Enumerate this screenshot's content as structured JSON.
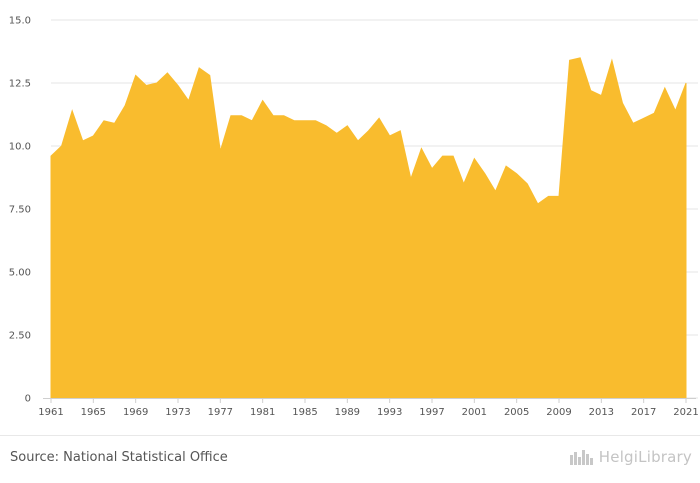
{
  "chart_data": {
    "type": "area",
    "title": "",
    "xlabel": "",
    "ylabel": "",
    "x": [
      1961,
      1962,
      1963,
      1964,
      1965,
      1966,
      1967,
      1968,
      1969,
      1970,
      1971,
      1972,
      1973,
      1974,
      1975,
      1976,
      1977,
      1978,
      1979,
      1980,
      1981,
      1982,
      1983,
      1984,
      1985,
      1986,
      1987,
      1988,
      1989,
      1990,
      1991,
      1992,
      1993,
      1994,
      1995,
      1996,
      1997,
      1998,
      1999,
      2000,
      2001,
      2002,
      2003,
      2004,
      2005,
      2006,
      2007,
      2008,
      2009,
      2010,
      2011,
      2012,
      2013,
      2014,
      2015,
      2016,
      2017,
      2018,
      2019,
      2020,
      2021
    ],
    "values": [
      9.6,
      10.0,
      11.4,
      10.2,
      10.4,
      11.0,
      10.9,
      11.6,
      12.8,
      12.4,
      12.5,
      12.9,
      12.4,
      11.8,
      13.1,
      12.8,
      9.8,
      11.2,
      11.2,
      11.0,
      11.8,
      11.2,
      11.2,
      11.0,
      11.0,
      11.0,
      10.8,
      10.5,
      10.8,
      10.2,
      10.6,
      11.1,
      10.4,
      10.6,
      8.7,
      9.9,
      9.1,
      9.6,
      9.6,
      8.5,
      9.5,
      8.9,
      8.2,
      9.2,
      8.9,
      8.5,
      7.7,
      8.0,
      8.0,
      13.4,
      13.5,
      12.2,
      12.0,
      13.4,
      11.7,
      10.9,
      11.1,
      11.3,
      12.3,
      11.4,
      12.5
    ],
    "ylim": [
      0,
      15
    ],
    "yticks": [
      0,
      2.5,
      5,
      7.5,
      10,
      12.5,
      15
    ],
    "ytick_labels": [
      "0",
      "2.50",
      "5.00",
      "7.50",
      "10.0",
      "12.5",
      "15.0"
    ],
    "xtick_labels": [
      "1961",
      "1965",
      "1969",
      "1973",
      "1977",
      "1981",
      "1985",
      "1989",
      "1993",
      "1997",
      "2001",
      "2005",
      "2009",
      "2013",
      "2017",
      "2021"
    ],
    "grid": true,
    "color": "#f9bc2e"
  },
  "footer": {
    "source": "Source: National Statistical Office",
    "logo_text": "HelgiLibrary"
  }
}
